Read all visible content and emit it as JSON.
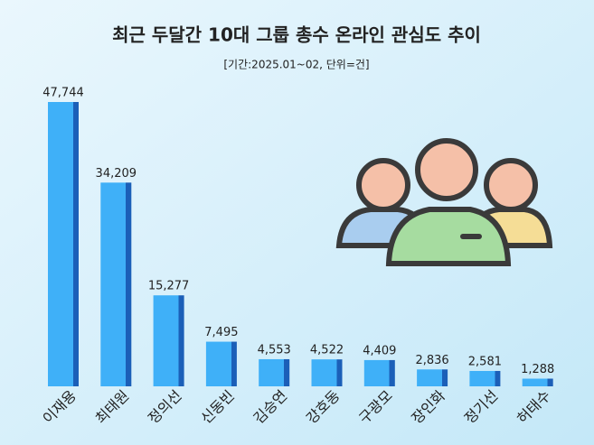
{
  "chart_data": {
    "type": "bar",
    "title": "최근 두달간 10대 그룹 총수 온라인 관심도 추이",
    "subtitle": "[기간:2025.01~02, 단위=건]",
    "categories": [
      "이재용",
      "최태원",
      "정의선",
      "신동빈",
      "김승연",
      "강호동",
      "구광모",
      "장인화",
      "정기선",
      "허태수"
    ],
    "values": [
      47744,
      34209,
      15277,
      7495,
      4553,
      4522,
      4409,
      2836,
      2581,
      1288
    ],
    "value_labels": [
      "47,744",
      "34,209",
      "15,277",
      "7,495",
      "4,553",
      "4,522",
      "4,409",
      "2,836",
      "2,581",
      "1,288"
    ],
    "color": "#3fb0f8"
  }
}
